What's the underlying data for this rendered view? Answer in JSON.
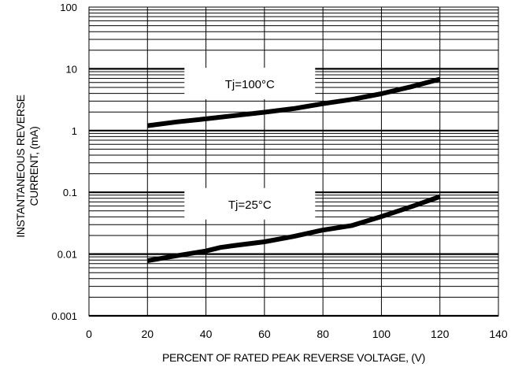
{
  "chart_data": {
    "type": "line",
    "title": "",
    "xlabel": "PERCENT OF RATED PEAK REVERSE VOLTAGE, (V)",
    "ylabel_lines": [
      "INSTANTANEOUS REVERSE",
      "CURRENT, (mA)"
    ],
    "xlim": [
      0,
      140
    ],
    "ylim": [
      0.001,
      100
    ],
    "yscale": "log",
    "grid": "major and minor",
    "x_ticks": [
      0,
      20,
      40,
      60,
      80,
      100,
      120,
      140
    ],
    "x_tick_labels": [
      "0",
      "20",
      "40",
      "60",
      "80",
      "100",
      "120",
      "140"
    ],
    "y_ticks": [
      0.001,
      0.01,
      0.1,
      1,
      10,
      100
    ],
    "y_tick_labels": [
      "0.001",
      "0.01",
      "0.1",
      "1",
      "10",
      "100"
    ],
    "series": [
      {
        "name": "Tj=100°C",
        "x": [
          20,
          30,
          40,
          50,
          60,
          70,
          80,
          90,
          100,
          110,
          120
        ],
        "y": [
          1.2,
          1.38,
          1.55,
          1.75,
          1.98,
          2.27,
          2.72,
          3.2,
          3.95,
          5.1,
          6.8
        ]
      },
      {
        "name": "Tj=25°C",
        "x": [
          20,
          30,
          40,
          45,
          50,
          60,
          70,
          80,
          90,
          100,
          110,
          120
        ],
        "y": [
          0.0078,
          0.0094,
          0.0112,
          0.0128,
          0.0138,
          0.0158,
          0.0193,
          0.0245,
          0.029,
          0.0405,
          0.058,
          0.085
        ]
      }
    ],
    "annotations": [
      {
        "text": "Tj=100°C",
        "x": 55,
        "y": 8.0
      },
      {
        "text": "Tj=25°C",
        "x": 55,
        "y": 0.09
      }
    ],
    "line_color": "#000000"
  }
}
